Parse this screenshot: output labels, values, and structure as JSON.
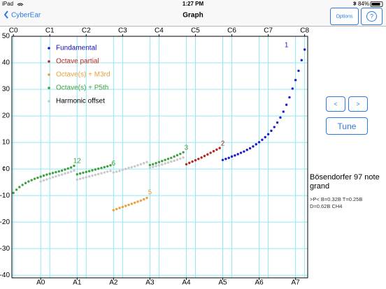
{
  "status_bar": {
    "device": "iPad",
    "time": "1:27 PM",
    "battery": "84%"
  },
  "nav_bar": {
    "back": "CyberEar",
    "title": "Graph",
    "options": "Options",
    "help": "?"
  },
  "chart_data": {
    "type": "scatter",
    "xlim": [
      -8.5,
      89
    ],
    "ylim": [
      -41,
      50
    ],
    "x2ticks": [
      {
        "value": -8,
        "label": "C0"
      },
      {
        "value": 4,
        "label": "C1"
      },
      {
        "value": 16,
        "label": "C2"
      },
      {
        "value": 28,
        "label": "C3"
      },
      {
        "value": 40,
        "label": "C4"
      },
      {
        "value": 52,
        "label": "C5"
      },
      {
        "value": 64,
        "label": "C6"
      },
      {
        "value": 76,
        "label": "C7"
      },
      {
        "value": 88,
        "label": "C8"
      }
    ],
    "xticks": [
      {
        "value": 1,
        "label": "A0"
      },
      {
        "value": 13,
        "label": "A1"
      },
      {
        "value": 25,
        "label": "A2"
      },
      {
        "value": 37,
        "label": "A3"
      },
      {
        "value": 49,
        "label": "A4"
      },
      {
        "value": 61,
        "label": "A5"
      },
      {
        "value": 73,
        "label": "A6"
      },
      {
        "value": 85,
        "label": "A7"
      }
    ],
    "yticks": [
      50,
      40,
      30,
      20,
      10,
      {
        "value": 0,
        "label": "¢0"
      },
      -10,
      -20,
      -30,
      -40
    ],
    "grid": true,
    "grid_color": "#8fe8f2",
    "legend": "upper left",
    "series": [
      {
        "name": "Fundamental",
        "color": "#1c1ccc",
        "legend_text_color": "#1010c0",
        "x": [
          61,
          62,
          63,
          64,
          65,
          66,
          67,
          68,
          69,
          70,
          71,
          72,
          73,
          74,
          75,
          76,
          77,
          78,
          79,
          80,
          81,
          82,
          83,
          84,
          85,
          86,
          87,
          88
        ],
        "values": [
          3.4,
          3.8,
          4.2,
          4.7,
          5.1,
          5.6,
          6.1,
          6.6,
          7.2,
          7.8,
          8.5,
          9.3,
          10.1,
          11,
          12,
          13.1,
          14.4,
          15.8,
          17.5,
          19.4,
          21.6,
          24.2,
          27,
          30.3,
          33.5,
          37,
          41,
          45
        ]
      },
      {
        "name": "Octave partial",
        "color": "#b8281e",
        "legend_text_color": "#b8281e",
        "x": [
          49,
          50,
          51,
          52,
          53,
          54,
          55,
          56,
          57,
          58,
          59,
          60
        ],
        "values": [
          1.8,
          2.3,
          2.8,
          3.3,
          3.8,
          4.3,
          4.9,
          5.5,
          6.1,
          6.7,
          7.3,
          7.9
        ]
      },
      {
        "name": "Octave(s) + M3rd",
        "color": "#e8a13a",
        "legend_text_color": "#e8a13a",
        "x": [
          25,
          26,
          27,
          28,
          29,
          30,
          31,
          32,
          33,
          34,
          35,
          36
        ],
        "values": [
          -15.5,
          -15.1,
          -14.7,
          -14.3,
          -13.9,
          -13.5,
          -13.1,
          -12.7,
          -12.3,
          -11.9,
          -11.4,
          -10.9
        ]
      },
      {
        "name": "Octave(s) + P5th",
        "color": "#3ea23e",
        "legend_text_color": "#3ea23e",
        "x": [
          -8,
          -7,
          -6,
          -5,
          -4,
          -3,
          -2,
          -1,
          0,
          1,
          2,
          3,
          4,
          5,
          6,
          7,
          8,
          9,
          10,
          11,
          12,
          13,
          14,
          15,
          16,
          17,
          18,
          19,
          20,
          21,
          22,
          23,
          24,
          37,
          38,
          39,
          40,
          41,
          42,
          43,
          44,
          45,
          46,
          47,
          48
        ],
        "values": [
          -9,
          -7.8,
          -6.8,
          -6,
          -5.3,
          -4.7,
          -4.2,
          -3.7,
          -3.3,
          -2.9,
          -2.5,
          -2.1,
          -1.8,
          -1.5,
          -1.2,
          -0.9,
          -0.6,
          -0.2,
          0.2,
          0.6,
          1.2,
          -2,
          -1.7,
          -1.4,
          -1.1,
          -0.8,
          -0.5,
          -0.2,
          0.1,
          0.4,
          0.7,
          1,
          1.4,
          1.5,
          1.8,
          2.2,
          2.6,
          3,
          3.4,
          3.8,
          4.2,
          4.7,
          5.2,
          5.7,
          6.3
        ]
      },
      {
        "name": "Harmonic offset",
        "color": "#c8c8c8",
        "legend_text_color": "#000000",
        "x": [
          1,
          2,
          3,
          4,
          5,
          6,
          7,
          8,
          9,
          10,
          11,
          12,
          13,
          14,
          15,
          16,
          17,
          18,
          19,
          20,
          21,
          22,
          23,
          24,
          25,
          26,
          27,
          28,
          29,
          30,
          31,
          32,
          33,
          34,
          35,
          36,
          37,
          38,
          39,
          40,
          41,
          42,
          43,
          44,
          45,
          46,
          47,
          48
        ],
        "values": [
          -4.7,
          -4.3,
          -3.9,
          -3.5,
          -3.1,
          -2.8,
          -2.4,
          -2.1,
          -1.7,
          -1.4,
          -1,
          -0.6,
          -4,
          -3.7,
          -3.4,
          -3.1,
          -2.8,
          -2.5,
          -2.2,
          -1.9,
          -1.6,
          -1.3,
          -1,
          -0.7,
          -1.3,
          -1,
          -0.7,
          -0.3,
          0,
          0.4,
          0.7,
          1,
          1.4,
          1.8,
          2.2,
          2.6,
          0.5,
          0.8,
          1.1,
          1.4,
          1.7,
          2.1,
          2.4,
          2.8,
          3.1,
          3.5,
          3.9,
          4.3
        ]
      }
    ],
    "annotations": [
      {
        "text": "1",
        "x": 82,
        "y": 46.6,
        "color": "#1c1ccc"
      },
      {
        "text": "2",
        "x": 61,
        "y": 9.5,
        "color": "#b8281e"
      },
      {
        "text": "3",
        "x": 49,
        "y": 7.9,
        "color": "#3ea23e"
      },
      {
        "text": "5",
        "x": 37,
        "y": -8.9,
        "color": "#e8a13a"
      },
      {
        "text": "6",
        "x": 25,
        "y": 2.1,
        "color": "#3ea23e"
      },
      {
        "text": "12",
        "x": 13,
        "y": 2.9,
        "color": "#3ea23e"
      }
    ]
  },
  "side_panel": {
    "prev": "<",
    "next": ">",
    "tune": "Tune",
    "instrument": "Bösendorfer 97 note grand",
    "params": ">P< B=0.32B T=0.25B D=0.62B CH4"
  }
}
